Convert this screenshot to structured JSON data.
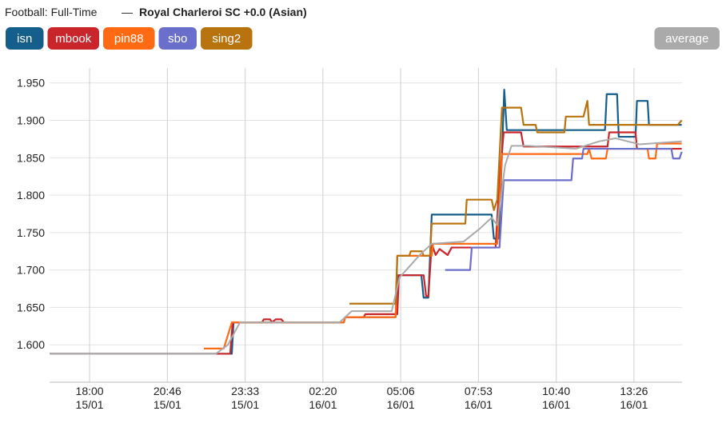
{
  "chart_data": {
    "type": "line",
    "title": "Football: Full-Time",
    "separator": "—",
    "subtitle": "Royal Charleroi SC +0.0 (Asian)",
    "xlim": [
      16.57,
      39.16
    ],
    "ylim": [
      1.55,
      1.97
    ],
    "xticks": [
      {
        "value": 18,
        "label": "18:00",
        "date": "15/01"
      },
      {
        "value": 20.778,
        "label": "20:46",
        "date": "15/01"
      },
      {
        "value": 23.556,
        "label": "23:33",
        "date": "15/01"
      },
      {
        "value": 26.333,
        "label": "02:20",
        "date": "16/01"
      },
      {
        "value": 29.111,
        "label": "05:06",
        "date": "16/01"
      },
      {
        "value": 31.889,
        "label": "07:53",
        "date": "16/01"
      },
      {
        "value": 34.667,
        "label": "10:40",
        "date": "16/01"
      },
      {
        "value": 37.444,
        "label": "13:26",
        "date": "16/01"
      }
    ],
    "yticks": [
      {
        "value": 1.6,
        "label": "1.600"
      },
      {
        "value": 1.65,
        "label": "1.650"
      },
      {
        "value": 1.7,
        "label": "1.700"
      },
      {
        "value": 1.75,
        "label": "1.750"
      },
      {
        "value": 1.8,
        "label": "1.800"
      },
      {
        "value": 1.85,
        "label": "1.850"
      },
      {
        "value": 1.9,
        "label": "1.900"
      },
      {
        "value": 1.95,
        "label": "1.950"
      }
    ],
    "grid": true,
    "series": [
      {
        "name": "isn",
        "color": "#155d8b",
        "x": [
          16.57,
          23.08,
          23.14,
          27.08,
          27.13,
          28.93,
          28.99,
          29.85,
          29.93,
          30.1,
          30.22,
          32.36,
          32.44,
          32.61,
          32.73,
          32.81,
          32.9,
          36.41,
          36.47,
          36.84,
          36.9,
          37.5,
          37.55,
          37.93,
          37.98,
          39.15
        ],
        "values": [
          1.588,
          1.588,
          1.63,
          1.63,
          1.637,
          1.637,
          1.693,
          1.693,
          1.663,
          1.663,
          1.774,
          1.774,
          1.742,
          1.742,
          1.855,
          1.941,
          1.887,
          1.887,
          1.935,
          1.935,
          1.878,
          1.878,
          1.926,
          1.926,
          1.894,
          1.894
        ]
      },
      {
        "name": "mbook",
        "color": "#c9262c",
        "x": [
          16.57,
          23.02,
          23.11,
          24.16,
          24.22,
          24.45,
          24.51,
          24.65,
          24.85,
          24.94,
          27.08,
          27.13,
          27.79,
          27.85,
          28.99,
          29.05,
          29.93,
          30.02,
          30.1,
          30.22,
          30.36,
          30.5,
          30.79,
          30.93,
          32.5,
          32.64,
          32.79,
          33.41,
          33.5,
          36.5,
          36.56,
          37.5,
          37.55,
          39.15
        ],
        "values": [
          1.588,
          1.588,
          1.63,
          1.63,
          1.634,
          1.634,
          1.63,
          1.634,
          1.634,
          1.63,
          1.63,
          1.637,
          1.637,
          1.641,
          1.641,
          1.693,
          1.693,
          1.665,
          1.665,
          1.735,
          1.72,
          1.728,
          1.72,
          1.73,
          1.73,
          1.82,
          1.884,
          1.884,
          1.865,
          1.865,
          1.884,
          1.884,
          1.862,
          1.862
        ]
      },
      {
        "name": "pin88",
        "color": "#ff6a13",
        "x": [
          22.08,
          22.79,
          23.08,
          27.08,
          27.13,
          28.93,
          28.99,
          30.22,
          30.27,
          32.56,
          32.73,
          35.78,
          35.84,
          35.93,
          36.44,
          36.5,
          37.93,
          37.98,
          38.21,
          38.27,
          39.15
        ],
        "values": [
          1.595,
          1.595,
          1.63,
          1.63,
          1.637,
          1.637,
          1.719,
          1.719,
          1.735,
          1.735,
          1.855,
          1.855,
          1.862,
          1.849,
          1.849,
          1.862,
          1.862,
          1.849,
          1.849,
          1.869,
          1.869
        ]
      },
      {
        "name": "sbo",
        "color": "#6b6fcc",
        "x": [
          30.7,
          31.59,
          31.65,
          32.64,
          32.79,
          35.21,
          35.27,
          35.59,
          35.64,
          38.78,
          38.84,
          39.07,
          39.15
        ],
        "values": [
          1.7,
          1.7,
          1.73,
          1.73,
          1.82,
          1.82,
          1.849,
          1.849,
          1.862,
          1.862,
          1.849,
          1.849,
          1.858
        ]
      },
      {
        "name": "sing2",
        "color": "#b8730f",
        "x": [
          27.28,
          28.93,
          28.99,
          29.42,
          29.47,
          29.87,
          29.93,
          30.16,
          30.22,
          31.42,
          31.47,
          32.36,
          32.44,
          32.56,
          32.73,
          33.41,
          33.5,
          33.93,
          33.99,
          34.96,
          35.01,
          35.64,
          35.78,
          35.84,
          39.01,
          39.15
        ],
        "values": [
          1.655,
          1.655,
          1.719,
          1.719,
          1.725,
          1.725,
          1.719,
          1.719,
          1.762,
          1.762,
          1.794,
          1.794,
          1.78,
          1.794,
          1.917,
          1.917,
          1.894,
          1.894,
          1.884,
          1.884,
          1.905,
          1.905,
          1.926,
          1.894,
          1.894,
          1.9
        ]
      },
      {
        "name": "average",
        "color": "#aaaaaa",
        "x": [
          16.57,
          22.51,
          22.94,
          23.37,
          26.93,
          27.36,
          28.79,
          29.07,
          29.79,
          30.22,
          31.36,
          31.93,
          32.36,
          32.56,
          32.84,
          33.07,
          33.64,
          35.36,
          36.21,
          36.78,
          37.64,
          39.15
        ],
        "values": [
          1.588,
          1.588,
          1.6,
          1.63,
          1.63,
          1.645,
          1.645,
          1.69,
          1.72,
          1.735,
          1.738,
          1.755,
          1.77,
          1.76,
          1.84,
          1.866,
          1.866,
          1.862,
          1.872,
          1.876,
          1.868,
          1.872
        ]
      }
    ]
  }
}
